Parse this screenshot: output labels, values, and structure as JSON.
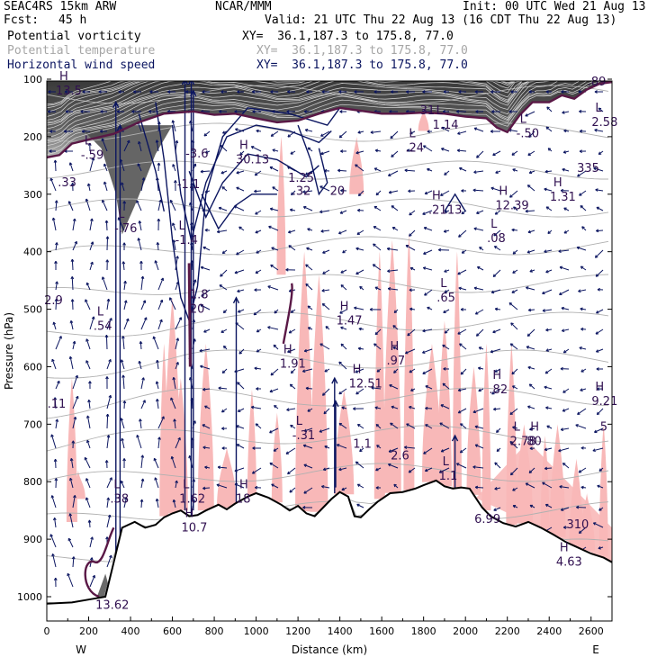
{
  "header": {
    "model": "SEAC4RS 15km ARW",
    "org": "NCAR/MMM",
    "init": "Init: 00 UTC Wed 21 Aug 13",
    "fcst_label": "Fcst:",
    "fcst_value": "45 h",
    "valid": "Valid: 21 UTC Thu 22 Aug 13 (16 CDT Thu 22 Aug 13)",
    "fields": [
      {
        "name": "Potential vorticity",
        "xy": "XY=  36.1,187.3 to 175.8, 77.0",
        "color": "#000000"
      },
      {
        "name": "Potential temperature",
        "xy": "XY=  36.1,187.3 to 175.8, 77.0",
        "color": "#a6a6a6"
      },
      {
        "name": "Horizontal wind speed",
        "xy": "XY=  36.1,187.3 to 175.8, 77.0",
        "color": "#0b1560"
      }
    ]
  },
  "chart_data": {
    "type": "cross-section",
    "xlabel": "Distance (km)",
    "ylabel": "Pressure (hPa)",
    "xlim": [
      0,
      2700
    ],
    "ylim_pressure": [
      1030,
      100
    ],
    "x_ticks": [
      "0",
      "200",
      "400",
      "600",
      "800",
      "1000",
      "1200",
      "1400",
      "1600",
      "1800",
      "2000",
      "2200",
      "2400",
      "2600"
    ],
    "y_ticks": [
      "100",
      "200",
      "300",
      "400",
      "500",
      "600",
      "700",
      "800",
      "900",
      "1000"
    ],
    "endpoints": {
      "left": "W",
      "right": "E"
    },
    "terrain_km_hpa": [
      [
        0,
        1012
      ],
      [
        120,
        1010
      ],
      [
        200,
        1005
      ],
      [
        280,
        1000
      ],
      [
        320,
        940
      ],
      [
        360,
        880
      ],
      [
        420,
        870
      ],
      [
        470,
        880
      ],
      [
        520,
        875
      ],
      [
        560,
        862
      ],
      [
        600,
        855
      ],
      [
        640,
        850
      ],
      [
        680,
        860
      ],
      [
        720,
        858
      ],
      [
        760,
        850
      ],
      [
        820,
        840
      ],
      [
        860,
        848
      ],
      [
        900,
        838
      ],
      [
        960,
        826
      ],
      [
        1000,
        820
      ],
      [
        1060,
        828
      ],
      [
        1120,
        840
      ],
      [
        1160,
        850
      ],
      [
        1200,
        842
      ],
      [
        1240,
        855
      ],
      [
        1280,
        860
      ],
      [
        1320,
        845
      ],
      [
        1360,
        830
      ],
      [
        1400,
        818
      ],
      [
        1440,
        826
      ],
      [
        1470,
        860
      ],
      [
        1500,
        862
      ],
      [
        1540,
        848
      ],
      [
        1580,
        835
      ],
      [
        1640,
        820
      ],
      [
        1700,
        818
      ],
      [
        1760,
        812
      ],
      [
        1800,
        806
      ],
      [
        1860,
        798
      ],
      [
        1900,
        808
      ],
      [
        1940,
        812
      ],
      [
        1980,
        810
      ],
      [
        2020,
        812
      ],
      [
        2080,
        845
      ],
      [
        2120,
        860
      ],
      [
        2180,
        872
      ],
      [
        2240,
        878
      ],
      [
        2300,
        870
      ],
      [
        2360,
        880
      ],
      [
        2420,
        892
      ],
      [
        2480,
        905
      ],
      [
        2540,
        915
      ],
      [
        2600,
        925
      ],
      [
        2660,
        932
      ],
      [
        2700,
        940
      ]
    ],
    "tropopause_pv2_km_hpa": [
      [
        0,
        236
      ],
      [
        60,
        232
      ],
      [
        120,
        212
      ],
      [
        200,
        205
      ],
      [
        320,
        195
      ],
      [
        440,
        175
      ],
      [
        560,
        160
      ],
      [
        700,
        156
      ],
      [
        800,
        162
      ],
      [
        900,
        160
      ],
      [
        1000,
        168
      ],
      [
        1100,
        175
      ],
      [
        1200,
        172
      ],
      [
        1300,
        160
      ],
      [
        1400,
        150
      ],
      [
        1500,
        155
      ],
      [
        1600,
        160
      ],
      [
        1700,
        160
      ],
      [
        1800,
        158
      ],
      [
        1900,
        160
      ],
      [
        2000,
        165
      ],
      [
        2100,
        168
      ],
      [
        2150,
        184
      ],
      [
        2200,
        192
      ],
      [
        2260,
        162
      ],
      [
        2320,
        140
      ],
      [
        2400,
        140
      ],
      [
        2460,
        128
      ],
      [
        2520,
        134
      ],
      [
        2580,
        118
      ],
      [
        2640,
        108
      ],
      [
        2700,
        105
      ]
    ],
    "annotations": [
      {
        "label": "H",
        "value": "13.5",
        "x": 60,
        "p": 120
      },
      {
        "label": "L",
        "value": "-.59",
        "x": 180,
        "p": 232
      },
      {
        "label": "",
        "value": ".33",
        "x": 70,
        "p": 280
      },
      {
        "label": "L",
        "value": "-.76",
        "x": 340,
        "p": 360
      },
      {
        "label": "",
        "value": "-3.6",
        "x": 680,
        "p": 230
      },
      {
        "label": "",
        "value": "-1.1",
        "x": 640,
        "p": 283
      },
      {
        "label": "L",
        "value": "-1.4",
        "x": 630,
        "p": 380
      },
      {
        "label": "H",
        "value": "30.13",
        "x": 920,
        "p": 240
      },
      {
        "label": "",
        "value": "1.25",
        "x": 1170,
        "p": 272
      },
      {
        "label": "",
        "value": ".32",
        "x": 1190,
        "p": 295
      },
      {
        "label": "",
        "value": "20",
        "x": 1370,
        "p": 295
      },
      {
        "label": "L",
        "value": ".24",
        "x": 1730,
        "p": 220
      },
      {
        "label": "L",
        "value": "1.14",
        "x": 1860,
        "p": 180
      },
      {
        "label": "",
        "value": "31",
        "x": 1800,
        "p": 155
      },
      {
        "label": "L",
        "value": "-.50",
        "x": 2260,
        "p": 195
      },
      {
        "label": "",
        "value": "335",
        "x": 2550,
        "p": 255
      },
      {
        "label": "L",
        "value": "2.58",
        "x": 2620,
        "p": 175
      },
      {
        "label": "",
        "value": ".89",
        "x": 2600,
        "p": 105
      },
      {
        "label": "H",
        "value": ".21",
        "x": 1840,
        "p": 328
      },
      {
        "label": "",
        "value": "13",
        "x": 1930,
        "p": 328
      },
      {
        "label": "H",
        "value": "12.39",
        "x": 2160,
        "p": 320
      },
      {
        "label": "L",
        "value": ".08",
        "x": 2120,
        "p": 377
      },
      {
        "label": "H",
        "value": "1.31",
        "x": 2420,
        "p": 305
      },
      {
        "label": "",
        "value": "1.8",
        "x": 700,
        "p": 475
      },
      {
        "label": "",
        "value": "20",
        "x": 700,
        "p": 500
      },
      {
        "label": "L",
        "value": ".54",
        "x": 240,
        "p": 530
      },
      {
        "label": "",
        "value": "2.9",
        "x": 5,
        "p": 485
      },
      {
        "label": "H",
        "value": "1.47",
        "x": 1400,
        "p": 520
      },
      {
        "label": "L",
        "value": ".65",
        "x": 1880,
        "p": 480
      },
      {
        "label": "H",
        "value": "1.91",
        "x": 1130,
        "p": 595
      },
      {
        "label": "H",
        "value": ".97",
        "x": 1640,
        "p": 590
      },
      {
        "label": "H",
        "value": "12.51",
        "x": 1460,
        "p": 630
      },
      {
        "label": "H",
        "value": ".82",
        "x": 2130,
        "p": 640
      },
      {
        "label": "H",
        "value": "9.21",
        "x": 2620,
        "p": 660
      },
      {
        "label": "",
        "value": ".11",
        "x": 20,
        "p": 665
      },
      {
        "label": "L",
        "value": "-.31",
        "x": 1190,
        "p": 720
      },
      {
        "label": "",
        "value": "1.1",
        "x": 1480,
        "p": 735
      },
      {
        "label": "",
        "value": "2.6",
        "x": 1660,
        "p": 755
      },
      {
        "label": "L",
        "value": "2.78",
        "x": 2230,
        "p": 730
      },
      {
        "label": "H",
        "value": "80",
        "x": 2310,
        "p": 730
      },
      {
        "label": "",
        "value": "5",
        "x": 2660,
        "p": 705
      },
      {
        "label": "L",
        "value": "1.1",
        "x": 1890,
        "p": 790
      },
      {
        "label": "L",
        "value": ".38",
        "x": 320,
        "p": 830
      },
      {
        "label": "L",
        "value": "1.62",
        "x": 650,
        "p": 830
      },
      {
        "label": "H",
        "value": "18",
        "x": 920,
        "p": 830
      },
      {
        "label": "H",
        "value": "10.7",
        "x": 660,
        "p": 880
      },
      {
        "label": "",
        "value": "6.99",
        "x": 2060,
        "p": 865
      },
      {
        "label": "",
        "value": "310",
        "x": 2500,
        "p": 875
      },
      {
        "label": "H",
        "value": "4.63",
        "x": 2450,
        "p": 940
      },
      {
        "label": "",
        "value": "13.62",
        "x": 250,
        "p": 1015
      }
    ]
  }
}
